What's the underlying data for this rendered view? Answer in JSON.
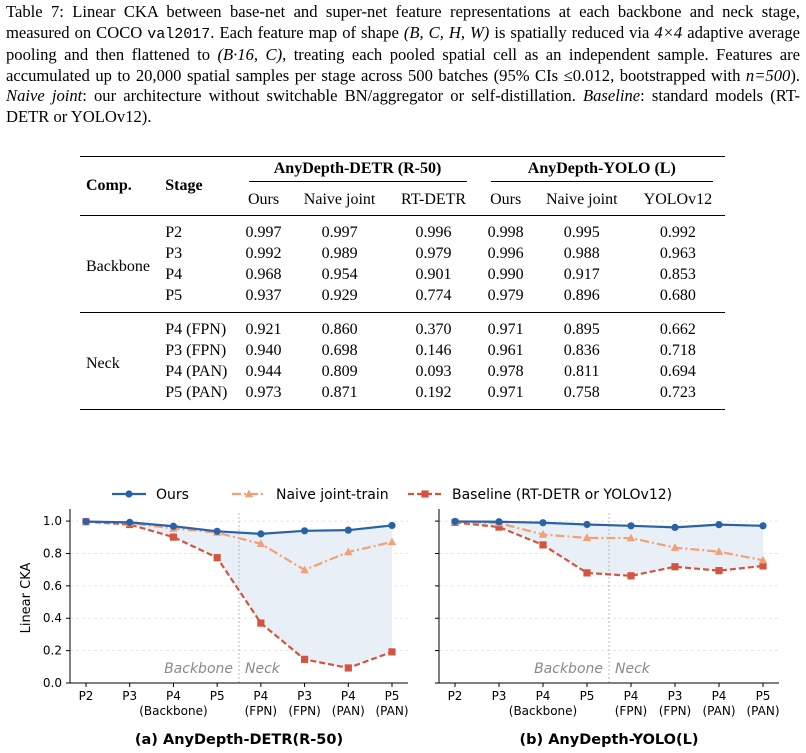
{
  "caption": {
    "p1": "Table 7: Linear CKA between base-net and super-net feature representations at each backbone and neck stage, measured on COCO ",
    "code": "val2017",
    "p2": ". Each feature map of shape ",
    "shape": "(B, C, H, W)",
    "p3": " is spatially reduced via ",
    "pool": "4×4",
    "p4": " adaptive average pooling and then flattened to ",
    "flat": "(B·16, C)",
    "p5": ", treating each pooled spatial cell as an independent sample. Features are accumulated up to 20,000 spatial samples per stage across 500 batches (95% CIs ",
    "ci": "≤0.012",
    "p6": ", bootstrapped with ",
    "n": "n=500",
    "p7": "). ",
    "naive_term": "Naive joint",
    "p8": ": our architecture without switchable BN/aggregator or self-distillation. ",
    "baseline_term": "Baseline",
    "p9": ": standard models (RT-DETR or YOLOv12)."
  },
  "table": {
    "col_comp": "Comp.",
    "col_stage": "Stage",
    "group1": "AnyDepth-DETR (R-50)",
    "group2": "AnyDepth-YOLO (L)",
    "sub": [
      "Ours",
      "Naive joint",
      "RT-DETR",
      "Ours",
      "Naive joint",
      "YOLOv12"
    ],
    "sections": [
      {
        "name": "Backbone",
        "rows": [
          {
            "stage": "P2",
            "vals": [
              "0.997",
              "0.997",
              "0.996",
              "0.998",
              "0.995",
              "0.992"
            ]
          },
          {
            "stage": "P3",
            "vals": [
              "0.992",
              "0.989",
              "0.979",
              "0.996",
              "0.988",
              "0.963"
            ]
          },
          {
            "stage": "P4",
            "vals": [
              "0.968",
              "0.954",
              "0.901",
              "0.990",
              "0.917",
              "0.853"
            ]
          },
          {
            "stage": "P5",
            "vals": [
              "0.937",
              "0.929",
              "0.774",
              "0.979",
              "0.896",
              "0.680"
            ]
          }
        ]
      },
      {
        "name": "Neck",
        "rows": [
          {
            "stage": "P4 (FPN)",
            "vals": [
              "0.921",
              "0.860",
              "0.370",
              "0.971",
              "0.895",
              "0.662"
            ]
          },
          {
            "stage": "P3 (FPN)",
            "vals": [
              "0.940",
              "0.698",
              "0.146",
              "0.961",
              "0.836",
              "0.718"
            ]
          },
          {
            "stage": "P4 (PAN)",
            "vals": [
              "0.944",
              "0.809",
              "0.093",
              "0.978",
              "0.811",
              "0.694"
            ]
          },
          {
            "stage": "P5 (PAN)",
            "vals": [
              "0.973",
              "0.871",
              "0.192",
              "0.971",
              "0.758",
              "0.723"
            ]
          }
        ]
      }
    ]
  },
  "figure": {
    "legend": [
      "Ours",
      "Naive joint-train",
      "Baseline (RT-DETR or YOLOv12)"
    ],
    "ylabel": "Linear CKA",
    "region_backbone": "Backbone",
    "region_neck": "Neck",
    "panel_titles": [
      "(a) AnyDepth-DETR(R-50)",
      "(b) AnyDepth-YOLO(L)"
    ],
    "colors": {
      "ours": "#2a62a8",
      "naive": "#f0a178",
      "baseline": "#d4553f",
      "fill": "#e9eff7"
    }
  },
  "chart_data": [
    {
      "type": "line",
      "title": "(a) AnyDepth-DETR(R-50)",
      "ylabel": "Linear CKA",
      "ylim": [
        0.0,
        1.05
      ],
      "yticks": [
        "0.0",
        "0.2",
        "0.4",
        "0.6",
        "0.8",
        "1.0"
      ],
      "categories": [
        [
          "P2"
        ],
        [
          "P3"
        ],
        [
          "P4",
          "(Backbone)"
        ],
        [
          "P5"
        ],
        [
          "P4",
          "(FPN)"
        ],
        [
          "P3",
          "(FPN)"
        ],
        [
          "P4",
          "(PAN)"
        ],
        [
          "P5",
          "(PAN)"
        ]
      ],
      "series": [
        {
          "name": "Ours",
          "values": [
            0.997,
            0.992,
            0.968,
            0.937,
            0.921,
            0.94,
            0.944,
            0.973
          ]
        },
        {
          "name": "Naive joint-train",
          "values": [
            0.997,
            0.989,
            0.954,
            0.929,
            0.86,
            0.698,
            0.809,
            0.871
          ]
        },
        {
          "name": "Baseline (RT-DETR or YOLOv12)",
          "values": [
            0.996,
            0.979,
            0.901,
            0.774,
            0.37,
            0.146,
            0.093,
            0.192
          ]
        }
      ]
    },
    {
      "type": "line",
      "title": "(b) AnyDepth-YOLO(L)",
      "ylim": [
        0.0,
        1.05
      ],
      "categories": [
        [
          "P2"
        ],
        [
          "P3"
        ],
        [
          "P4",
          "(Backbone)"
        ],
        [
          "P5"
        ],
        [
          "P4",
          "(FPN)"
        ],
        [
          "P3",
          "(FPN)"
        ],
        [
          "P4",
          "(PAN)"
        ],
        [
          "P5",
          "(PAN)"
        ]
      ],
      "series": [
        {
          "name": "Ours",
          "values": [
            0.998,
            0.996,
            0.99,
            0.979,
            0.971,
            0.961,
            0.978,
            0.971
          ]
        },
        {
          "name": "Naive joint-train",
          "values": [
            0.995,
            0.988,
            0.917,
            0.896,
            0.895,
            0.836,
            0.811,
            0.758
          ]
        },
        {
          "name": "Baseline (RT-DETR or YOLOv12)",
          "values": [
            0.992,
            0.963,
            0.853,
            0.68,
            0.662,
            0.718,
            0.694,
            0.723
          ]
        }
      ]
    }
  ]
}
